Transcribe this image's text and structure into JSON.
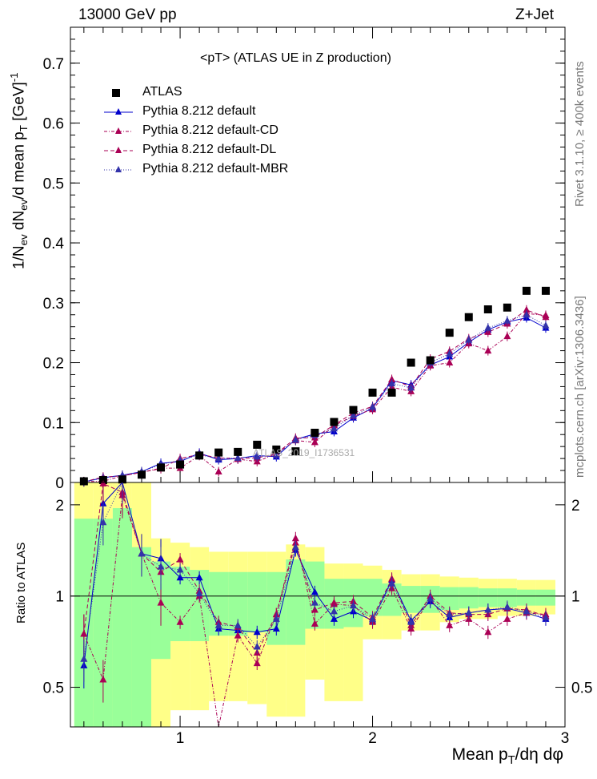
{
  "header": {
    "left": "13000 GeV pp",
    "right": "Z+Jet"
  },
  "side_labels": {
    "top": "Rivet 3.1.10, ≥ 400k events",
    "bottom": "mcplots.cern.ch [arXiv:1306.3436]"
  },
  "watermark": "ATLAS_2019_I1736531",
  "legend": [
    {
      "name": "ATLAS",
      "style": "data"
    },
    {
      "name": "Pythia 8.212 default",
      "style": "solid"
    },
    {
      "name": "Pythia 8.212 default-CD",
      "style": "dashdot"
    },
    {
      "name": "Pythia 8.212 default-DL",
      "style": "dashed"
    },
    {
      "name": "Pythia 8.212 default-MBR",
      "style": "dotted"
    }
  ],
  "colors": {
    "data": "#000000",
    "default": "#0000cc",
    "cd": "#aa0055",
    "dl": "#aa0055",
    "mbr": "#3333aa",
    "band_outer": "#ffff88",
    "band_inner": "#99ff99"
  },
  "chart_data": [
    {
      "type": "line",
      "title": "<pT> (ATLAS UE in Z production)",
      "ylabel": "1/N_ev dN_ev/d mean p_T [GeV]^-1",
      "xlim": [
        0.43,
        3.0
      ],
      "ylim": [
        0,
        0.76
      ],
      "y_ticks": [
        0,
        0.1,
        0.2,
        0.3,
        0.4,
        0.5,
        0.6,
        0.7
      ],
      "y_tick_labels": [
        "0",
        "0.1",
        "0.2",
        "0.3",
        "0.4",
        "0.5",
        "0.6",
        "0.7"
      ],
      "x": [
        0.5,
        0.6,
        0.7,
        0.8,
        0.9,
        1.0,
        1.1,
        1.2,
        1.3,
        1.4,
        1.5,
        1.6,
        1.7,
        1.8,
        1.9,
        2.0,
        2.1,
        2.2,
        2.3,
        2.4,
        2.5,
        2.6,
        2.7,
        2.8,
        2.9
      ],
      "series": [
        {
          "name": "ATLAS",
          "values": [
            0.002,
            0.004,
            0.005,
            0.013,
            0.025,
            0.03,
            0.045,
            0.05,
            0.051,
            0.063,
            0.055,
            0.052,
            0.083,
            0.101,
            0.121,
            0.15,
            0.15,
            0.2,
            0.204,
            0.25,
            0.276,
            0.289,
            0.292,
            0.32,
            0.32
          ]
        },
        {
          "name": "Pythia 8.212 default",
          "values": [
            0.001,
            0.008,
            0.012,
            0.018,
            0.032,
            0.035,
            0.049,
            0.038,
            0.04,
            0.045,
            0.043,
            0.072,
            0.081,
            0.085,
            0.108,
            0.124,
            0.17,
            0.163,
            0.196,
            0.21,
            0.234,
            0.255,
            0.268,
            0.275,
            0.258
          ]
        },
        {
          "name": "Pythia 8.212 default-CD",
          "values": [
            0.0015,
            0.002,
            0.011,
            0.017,
            0.024,
            0.024,
            0.045,
            0.018,
            0.039,
            0.035,
            0.048,
            0.07,
            0.067,
            0.095,
            0.111,
            0.122,
            0.159,
            0.152,
            0.195,
            0.2,
            0.232,
            0.22,
            0.244,
            0.282,
            0.279
          ]
        },
        {
          "name": "Pythia 8.212 default-DL",
          "values": [
            0.0012,
            0.009,
            0.011,
            0.017,
            0.023,
            0.04,
            0.047,
            0.041,
            0.04,
            0.041,
            0.048,
            0.074,
            0.075,
            0.096,
            0.116,
            0.127,
            0.172,
            0.16,
            0.206,
            0.219,
            0.24,
            0.251,
            0.265,
            0.288,
            0.276
          ]
        },
        {
          "name": "Pythia 8.212 default-MBR",
          "values": [
            0.0013,
            0.007,
            0.012,
            0.018,
            0.03,
            0.037,
            0.046,
            0.04,
            0.041,
            0.043,
            0.046,
            0.071,
            0.079,
            0.09,
            0.112,
            0.126,
            0.165,
            0.158,
            0.2,
            0.215,
            0.238,
            0.258,
            0.27,
            0.28,
            0.262
          ]
        }
      ]
    },
    {
      "type": "line",
      "ylabel": "Ratio to ATLAS",
      "xlabel": "Mean p_T/dη dφ",
      "xlim": [
        0.43,
        3.0
      ],
      "ylim": [
        0.37,
        2.37
      ],
      "log_y": true,
      "y_ticks": [
        0.5,
        1,
        2
      ],
      "y_tick_labels": [
        "0.5",
        "1",
        "2"
      ],
      "x_ticks": [
        1,
        2,
        3
      ],
      "x_tick_labels": [
        "1",
        "2",
        "3"
      ],
      "x": [
        0.5,
        0.6,
        0.7,
        0.8,
        0.9,
        1.0,
        1.1,
        1.2,
        1.3,
        1.4,
        1.5,
        1.6,
        1.7,
        1.8,
        1.9,
        2.0,
        2.1,
        2.2,
        2.3,
        2.4,
        2.5,
        2.6,
        2.7,
        2.8,
        2.9
      ],
      "bands": {
        "edges": [
          0.45,
          0.55,
          0.65,
          0.75,
          0.85,
          0.95,
          1.05,
          1.15,
          1.25,
          1.35,
          1.45,
          1.55,
          1.65,
          1.75,
          1.85,
          1.95,
          2.05,
          2.15,
          2.25,
          2.35,
          2.45,
          2.55,
          2.65,
          2.75,
          2.85,
          2.95
        ],
        "outer_lo": [
          0.37,
          0.37,
          0.37,
          0.37,
          0.37,
          0.42,
          0.42,
          0.45,
          0.45,
          0.44,
          0.4,
          0.4,
          0.53,
          0.45,
          0.45,
          0.72,
          0.72,
          0.77,
          0.77,
          0.82,
          0.84,
          0.84,
          0.86,
          0.86,
          0.87
        ],
        "outer_hi": [
          2.37,
          2.37,
          2.37,
          2.37,
          1.55,
          1.5,
          1.45,
          1.4,
          1.4,
          1.4,
          1.4,
          1.48,
          1.45,
          1.28,
          1.28,
          1.26,
          1.22,
          1.18,
          1.18,
          1.16,
          1.15,
          1.14,
          1.14,
          1.13,
          1.13
        ],
        "inner_lo": [
          0.37,
          0.37,
          0.37,
          0.37,
          0.62,
          0.71,
          0.71,
          0.74,
          0.74,
          0.76,
          0.69,
          0.69,
          0.78,
          0.78,
          0.79,
          0.86,
          0.86,
          0.88,
          0.88,
          0.9,
          0.91,
          0.92,
          0.92,
          0.93,
          0.93
        ],
        "inner_hi": [
          1.8,
          1.8,
          1.95,
          1.45,
          1.3,
          1.25,
          1.22,
          1.2,
          1.2,
          1.2,
          1.2,
          1.32,
          1.3,
          1.14,
          1.14,
          1.14,
          1.1,
          1.08,
          1.08,
          1.07,
          1.07,
          1.06,
          1.06,
          1.05,
          1.05
        ]
      },
      "series": [
        {
          "name": "Pythia 8.212 default",
          "values": [
            0.59,
            2.02,
            2.4,
            1.38,
            1.33,
            1.15,
            1.15,
            0.78,
            0.77,
            0.76,
            0.78,
            1.42,
            1.03,
            0.84,
            0.89,
            0.83,
            1.13,
            0.83,
            0.96,
            0.85,
            0.88,
            0.9,
            0.91,
            0.88,
            0.84
          ]
        },
        {
          "name": "Pythia 8.212 default-CD",
          "values": [
            0.75,
            0.53,
            2.15,
            1.38,
            0.95,
            0.82,
            1.0,
            0.36,
            0.74,
            0.6,
            0.87,
            1.55,
            0.81,
            0.94,
            0.93,
            0.82,
            1.06,
            0.78,
            0.98,
            0.8,
            0.84,
            0.76,
            0.84,
            0.88,
            0.87
          ]
        },
        {
          "name": "Pythia 8.212 default-DL",
          "values": [
            0.75,
            2.35,
            2.2,
            1.38,
            1.2,
            1.32,
            1.04,
            0.82,
            0.79,
            0.65,
            0.87,
            1.5,
            0.9,
            0.95,
            0.96,
            0.85,
            1.14,
            0.8,
            1.0,
            0.88,
            0.87,
            0.87,
            0.91,
            0.9,
            0.86
          ]
        },
        {
          "name": "Pythia 8.212 default-MBR",
          "values": [
            0.62,
            1.75,
            2.4,
            1.38,
            1.25,
            1.22,
            1.02,
            0.8,
            0.8,
            0.68,
            0.84,
            1.45,
            0.95,
            0.89,
            0.93,
            0.84,
            1.1,
            0.82,
            0.98,
            0.87,
            0.88,
            0.9,
            0.92,
            0.89,
            0.85
          ]
        }
      ]
    }
  ]
}
